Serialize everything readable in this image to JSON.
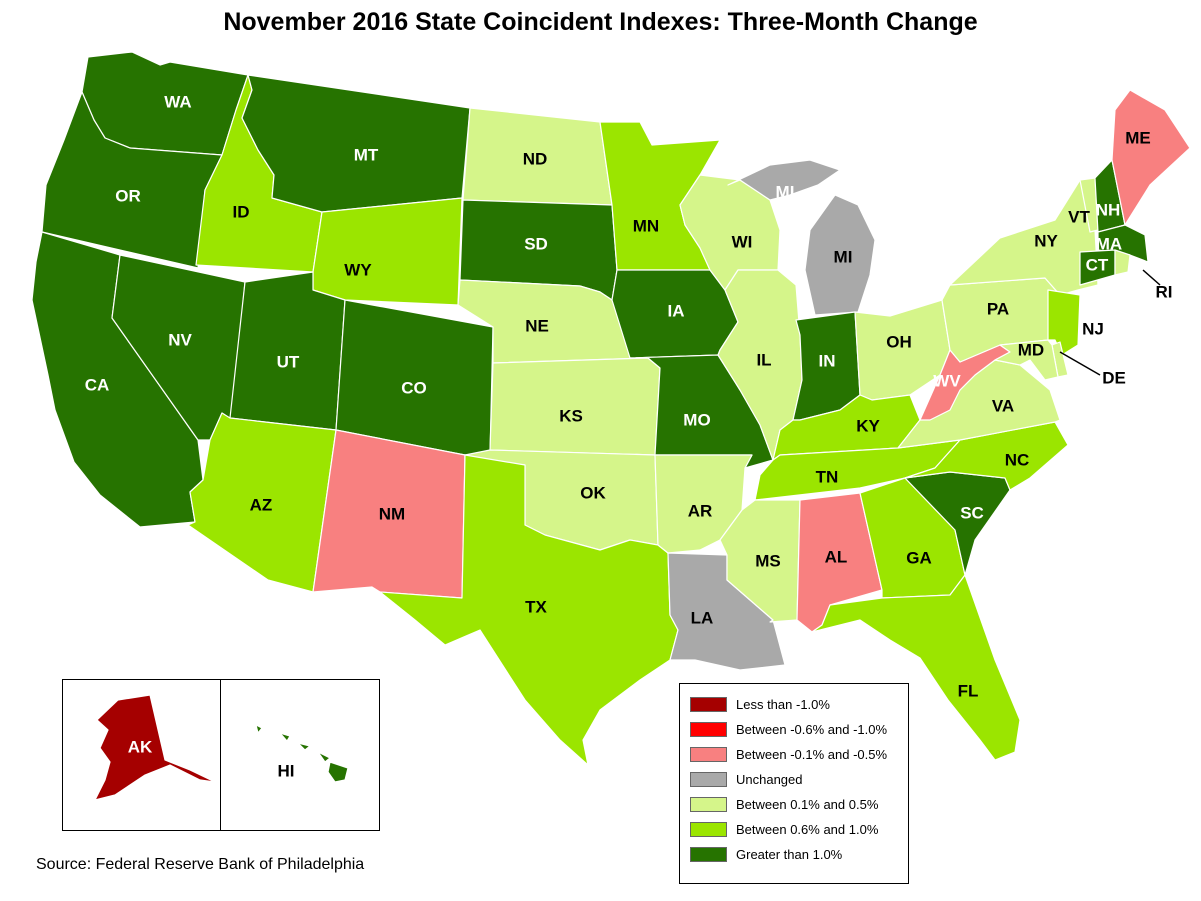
{
  "title": "November 2016 State Coincident Indexes: Three-Month Change",
  "source": "Source: Federal Reserve Bank of Philadelphia",
  "legend": [
    {
      "label": "Less than -1.0%",
      "color": "#a50000"
    },
    {
      "label": "Between -0.6% and -1.0%",
      "color": "#ff0000"
    },
    {
      "label": "Between -0.1% and -0.5%",
      "color": "#f88080"
    },
    {
      "label": "Unchanged",
      "color": "#a9a9a9"
    },
    {
      "label": "Between 0.1% and 0.5%",
      "color": "#d5f58a"
    },
    {
      "label": "Between 0.6% and 1.0%",
      "color": "#9be500"
    },
    {
      "label": "Greater than 1.0%",
      "color": "#267300"
    }
  ],
  "states": [
    {
      "abbr": "WA",
      "category": "Greater than 1.0%"
    },
    {
      "abbr": "OR",
      "category": "Greater than 1.0%"
    },
    {
      "abbr": "CA",
      "category": "Greater than 1.0%"
    },
    {
      "abbr": "NV",
      "category": "Greater than 1.0%"
    },
    {
      "abbr": "ID",
      "category": "Between 0.6% and 1.0%"
    },
    {
      "abbr": "MT",
      "category": "Greater than 1.0%"
    },
    {
      "abbr": "WY",
      "category": "Between 0.6% and 1.0%"
    },
    {
      "abbr": "UT",
      "category": "Greater than 1.0%"
    },
    {
      "abbr": "CO",
      "category": "Greater than 1.0%"
    },
    {
      "abbr": "AZ",
      "category": "Between 0.6% and 1.0%"
    },
    {
      "abbr": "NM",
      "category": "Between -0.1% and -0.5%"
    },
    {
      "abbr": "ND",
      "category": "Between 0.1% and 0.5%"
    },
    {
      "abbr": "SD",
      "category": "Greater than 1.0%"
    },
    {
      "abbr": "NE",
      "category": "Between 0.1% and 0.5%"
    },
    {
      "abbr": "KS",
      "category": "Between 0.1% and 0.5%"
    },
    {
      "abbr": "OK",
      "category": "Between 0.1% and 0.5%"
    },
    {
      "abbr": "TX",
      "category": "Between 0.6% and 1.0%"
    },
    {
      "abbr": "MN",
      "category": "Between 0.6% and 1.0%"
    },
    {
      "abbr": "IA",
      "category": "Greater than 1.0%"
    },
    {
      "abbr": "MO",
      "category": "Greater than 1.0%"
    },
    {
      "abbr": "AR",
      "category": "Between 0.1% and 0.5%"
    },
    {
      "abbr": "LA",
      "category": "Unchanged"
    },
    {
      "abbr": "WI",
      "category": "Between 0.1% and 0.5%"
    },
    {
      "abbr": "IL",
      "category": "Between 0.1% and 0.5%"
    },
    {
      "abbr": "MI",
      "category": "Unchanged"
    },
    {
      "abbr": "IN",
      "category": "Greater than 1.0%"
    },
    {
      "abbr": "OH",
      "category": "Between 0.1% and 0.5%"
    },
    {
      "abbr": "KY",
      "category": "Between 0.6% and 1.0%"
    },
    {
      "abbr": "TN",
      "category": "Between 0.6% and 1.0%"
    },
    {
      "abbr": "MS",
      "category": "Between 0.1% and 0.5%"
    },
    {
      "abbr": "AL",
      "category": "Between -0.1% and -0.5%"
    },
    {
      "abbr": "GA",
      "category": "Between 0.6% and 1.0%"
    },
    {
      "abbr": "FL",
      "category": "Between 0.6% and 1.0%"
    },
    {
      "abbr": "SC",
      "category": "Greater than 1.0%"
    },
    {
      "abbr": "NC",
      "category": "Between 0.6% and 1.0%"
    },
    {
      "abbr": "VA",
      "category": "Between 0.1% and 0.5%"
    },
    {
      "abbr": "WV",
      "category": "Between -0.1% and -0.5%"
    },
    {
      "abbr": "PA",
      "category": "Between 0.1% and 0.5%"
    },
    {
      "abbr": "NY",
      "category": "Between 0.1% and 0.5%"
    },
    {
      "abbr": "NJ",
      "category": "Between 0.6% and 1.0%"
    },
    {
      "abbr": "DE",
      "category": "Between 0.1% and 0.5%"
    },
    {
      "abbr": "MD",
      "category": "Between 0.1% and 0.5%"
    },
    {
      "abbr": "VT",
      "category": "Between 0.1% and 0.5%"
    },
    {
      "abbr": "NH",
      "category": "Greater than 1.0%"
    },
    {
      "abbr": "ME",
      "category": "Between -0.1% and -0.5%"
    },
    {
      "abbr": "MA",
      "category": "Greater than 1.0%"
    },
    {
      "abbr": "CT",
      "category": "Greater than 1.0%"
    },
    {
      "abbr": "RI",
      "category": "Between 0.1% and 0.5%"
    },
    {
      "abbr": "AK",
      "category": "Less than -1.0%"
    },
    {
      "abbr": "HI",
      "category": "Greater than 1.0%"
    }
  ]
}
